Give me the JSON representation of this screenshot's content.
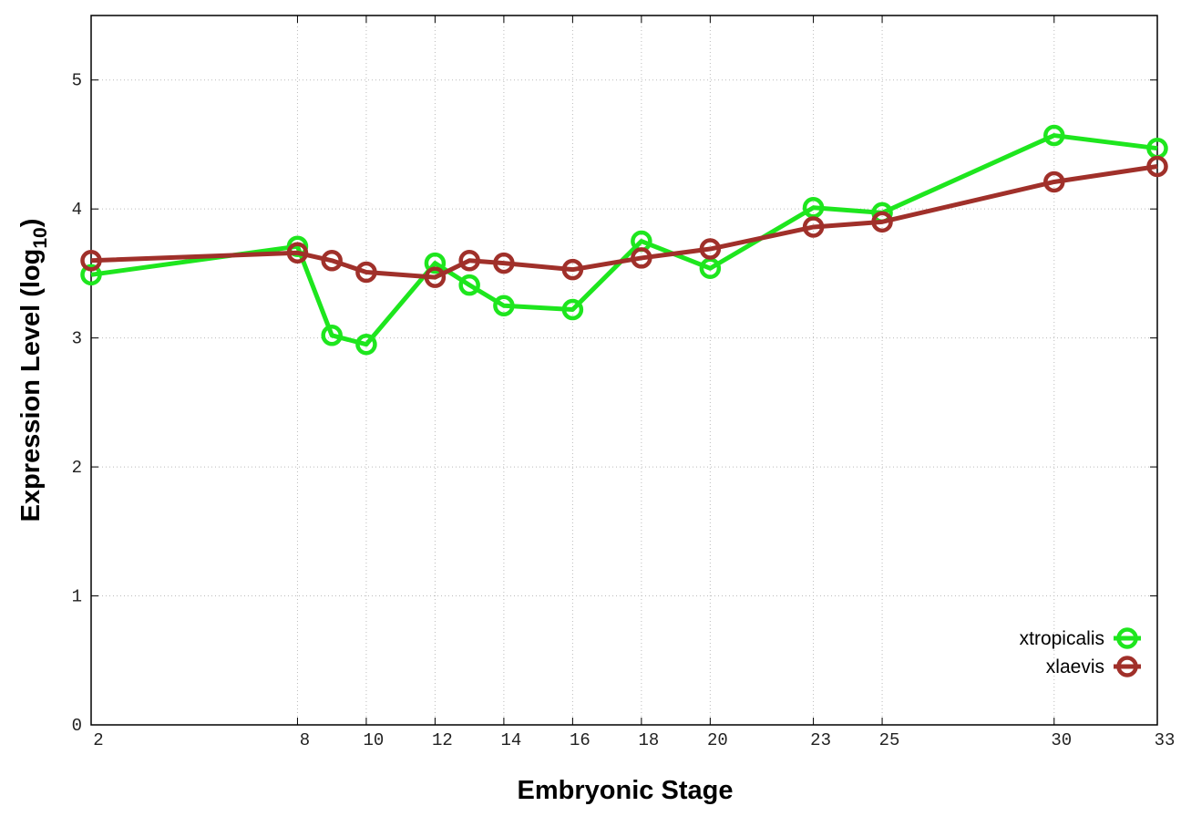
{
  "chart_data": {
    "type": "line",
    "x_label": "Embryonic Stage",
    "y_label": [
      "Expression Level (log",
      "10",
      ")"
    ],
    "xlim": [
      2,
      33
    ],
    "xticks": [
      2,
      8,
      10,
      12,
      14,
      16,
      18,
      20,
      23,
      25,
      30,
      33
    ],
    "ylim": [
      0,
      5.5
    ],
    "yticks": [
      0,
      1,
      2,
      3,
      4,
      5
    ],
    "grid": true,
    "legend": "lower right",
    "series": [
      {
        "name": "xtropicalis",
        "color": "#1ee61e",
        "x": [
          2,
          8,
          9,
          10,
          12,
          13,
          14,
          16,
          18,
          20,
          23,
          25,
          30,
          33
        ],
        "values": [
          3.49,
          3.71,
          3.02,
          2.95,
          3.58,
          3.41,
          3.25,
          3.22,
          3.75,
          3.54,
          4.01,
          3.97,
          4.57,
          4.47
        ]
      },
      {
        "name": "xlaevis",
        "color": "#a0302a",
        "x": [
          2,
          8,
          9,
          10,
          12,
          13,
          14,
          16,
          18,
          20,
          23,
          25,
          30,
          33
        ],
        "values": [
          3.6,
          3.66,
          3.6,
          3.51,
          3.47,
          3.6,
          3.58,
          3.53,
          3.62,
          3.69,
          3.86,
          3.9,
          4.21,
          4.33
        ]
      }
    ]
  }
}
